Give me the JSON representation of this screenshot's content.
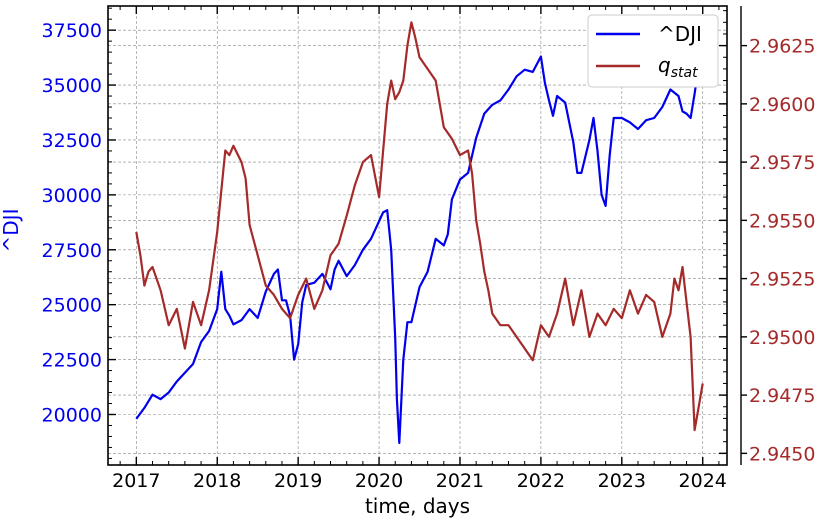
{
  "chart_data": {
    "type": "line",
    "xlabel": "time, days",
    "ylabel_left": "^DJI",
    "ylabel_right": "",
    "xlim": [
      2016.65,
      2024.3
    ],
    "ylim_left": [
      17700,
      38600
    ],
    "ylim_right": [
      2.9445,
      2.9642
    ],
    "x_ticks": [
      2017,
      2018,
      2019,
      2020,
      2021,
      2022,
      2023,
      2024
    ],
    "y_left_ticks": [
      20000,
      22500,
      25000,
      27500,
      30000,
      32500,
      35000,
      37500
    ],
    "y_right_ticks": [
      2.945,
      2.9475,
      2.95,
      2.9525,
      2.955,
      2.9575,
      2.96,
      2.9625
    ],
    "y_right_tick_labels": [
      "2.9450",
      "2.9475",
      "2.9500",
      "2.9525",
      "2.9550",
      "2.9575",
      "2.9600",
      "2.9625"
    ],
    "grid": true,
    "legend_position": "top-right",
    "colors": {
      "dji": "#0000ee",
      "qstat": "#a52a2a",
      "grid": "#888888"
    },
    "series": [
      {
        "name": "^DJI",
        "axis": "left",
        "x": [
          2017.0,
          2017.1,
          2017.2,
          2017.3,
          2017.4,
          2017.5,
          2017.6,
          2017.7,
          2017.8,
          2017.9,
          2018.0,
          2018.05,
          2018.1,
          2018.15,
          2018.2,
          2018.3,
          2018.4,
          2018.5,
          2018.6,
          2018.7,
          2018.75,
          2018.8,
          2018.85,
          2018.9,
          2018.95,
          2019.0,
          2019.05,
          2019.1,
          2019.2,
          2019.3,
          2019.4,
          2019.45,
          2019.5,
          2019.6,
          2019.7,
          2019.8,
          2019.9,
          2020.0,
          2020.05,
          2020.1,
          2020.15,
          2020.2,
          2020.22,
          2020.25,
          2020.3,
          2020.35,
          2020.4,
          2020.5,
          2020.6,
          2020.7,
          2020.8,
          2020.85,
          2020.9,
          2021.0,
          2021.1,
          2021.2,
          2021.3,
          2021.4,
          2021.5,
          2021.6,
          2021.7,
          2021.8,
          2021.9,
          2022.0,
          2022.05,
          2022.1,
          2022.15,
          2022.2,
          2022.3,
          2022.4,
          2022.45,
          2022.5,
          2022.6,
          2022.65,
          2022.7,
          2022.75,
          2022.8,
          2022.85,
          2022.9,
          2023.0,
          2023.1,
          2023.2,
          2023.3,
          2023.4,
          2023.5,
          2023.6,
          2023.7,
          2023.75,
          2023.8,
          2023.85,
          2023.9,
          2023.95,
          2024.0
        ],
        "y": [
          19800,
          20300,
          20900,
          20700,
          21000,
          21500,
          21900,
          22300,
          23300,
          23800,
          24800,
          26500,
          24800,
          24500,
          24100,
          24300,
          24800,
          24400,
          25600,
          26400,
          26600,
          25200,
          25200,
          24500,
          22500,
          23200,
          25100,
          25900,
          26000,
          26400,
          25700,
          26600,
          27000,
          26300,
          26800,
          27500,
          28000,
          28800,
          29200,
          29300,
          27500,
          23500,
          20700,
          18700,
          22500,
          24200,
          24200,
          25800,
          26500,
          28000,
          27700,
          28200,
          29800,
          30700,
          31000,
          32600,
          33700,
          34100,
          34300,
          34800,
          35400,
          35700,
          35600,
          36300,
          35100,
          34300,
          33600,
          34500,
          34200,
          32400,
          31000,
          31000,
          32500,
          33500,
          32000,
          30000,
          29500,
          31800,
          33500,
          33500,
          33300,
          33000,
          33400,
          33500,
          34000,
          34800,
          34500,
          33800,
          33700,
          33500,
          34600,
          35900,
          37500
        ]
      },
      {
        "name": "q_stat",
        "axis": "right",
        "x": [
          2017.0,
          2017.05,
          2017.1,
          2017.15,
          2017.2,
          2017.3,
          2017.4,
          2017.5,
          2017.6,
          2017.7,
          2017.8,
          2017.9,
          2018.0,
          2018.1,
          2018.15,
          2018.2,
          2018.3,
          2018.35,
          2018.4,
          2018.5,
          2018.6,
          2018.7,
          2018.8,
          2018.9,
          2019.0,
          2019.1,
          2019.2,
          2019.3,
          2019.4,
          2019.5,
          2019.6,
          2019.7,
          2019.8,
          2019.9,
          2020.0,
          2020.1,
          2020.15,
          2020.2,
          2020.25,
          2020.3,
          2020.35,
          2020.4,
          2020.45,
          2020.5,
          2020.6,
          2020.7,
          2020.8,
          2020.9,
          2021.0,
          2021.1,
          2021.15,
          2021.2,
          2021.25,
          2021.3,
          2021.35,
          2021.4,
          2021.5,
          2021.6,
          2021.7,
          2021.8,
          2021.9,
          2022.0,
          2022.1,
          2022.2,
          2022.3,
          2022.4,
          2022.5,
          2022.6,
          2022.7,
          2022.8,
          2022.9,
          2023.0,
          2023.1,
          2023.2,
          2023.3,
          2023.4,
          2023.5,
          2023.6,
          2023.65,
          2023.7,
          2023.75,
          2023.8,
          2023.85,
          2023.9,
          2023.95,
          2024.0
        ],
        "y": [
          2.9545,
          2.9535,
          2.9522,
          2.9528,
          2.953,
          2.952,
          2.9505,
          2.9512,
          2.9495,
          2.9515,
          2.9505,
          2.952,
          2.9545,
          2.958,
          2.9578,
          2.9582,
          2.9575,
          2.9568,
          2.9548,
          2.9535,
          2.9522,
          2.9518,
          2.9512,
          2.9508,
          2.9518,
          2.9525,
          2.9512,
          2.952,
          2.9535,
          2.954,
          2.9552,
          2.9565,
          2.9575,
          2.9578,
          2.956,
          2.96,
          2.961,
          2.9602,
          2.9605,
          2.961,
          2.9625,
          2.9635,
          2.9628,
          2.962,
          2.9615,
          2.961,
          2.959,
          2.9585,
          2.9578,
          2.958,
          2.957,
          2.955,
          2.954,
          2.9528,
          2.952,
          2.951,
          2.9505,
          2.9505,
          2.95,
          2.9495,
          2.949,
          2.9505,
          2.95,
          2.951,
          2.9525,
          2.9505,
          2.952,
          2.95,
          2.951,
          2.9505,
          2.9512,
          2.9508,
          2.952,
          2.951,
          2.9518,
          2.9515,
          2.95,
          2.951,
          2.9525,
          2.952,
          2.953,
          2.9515,
          2.95,
          2.946,
          2.947,
          2.948
        ]
      }
    ]
  }
}
